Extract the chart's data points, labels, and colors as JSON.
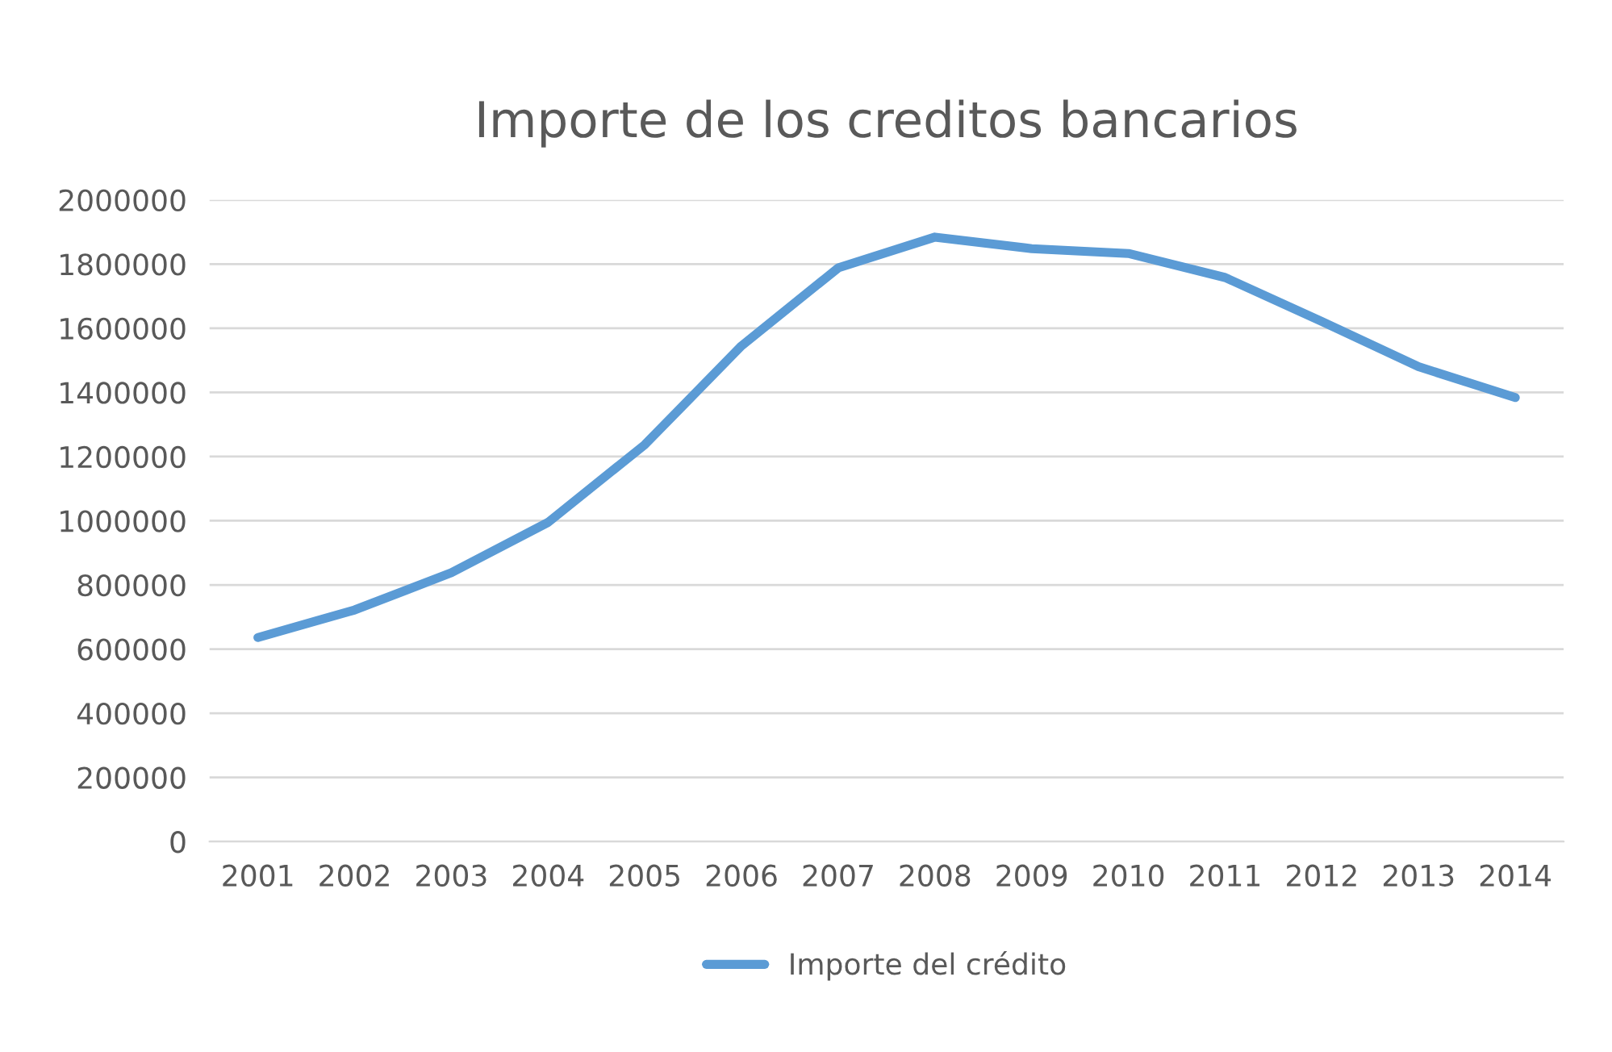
{
  "chart_data": {
    "type": "line",
    "title": "Importe de los creditos bancarios",
    "categories": [
      "2001",
      "2002",
      "2003",
      "2004",
      "2005",
      "2006",
      "2007",
      "2008",
      "2009",
      "2010",
      "2011",
      "2012",
      "2013",
      "2014"
    ],
    "series": [
      {
        "name": "Importe del crédito",
        "color": "#5b9bd5",
        "values": [
          636000,
          722000,
          838000,
          995000,
          1237000,
          1545000,
          1788000,
          1884000,
          1848000,
          1833000,
          1758000,
          1621000,
          1480000,
          1384000
        ]
      }
    ],
    "ylim": [
      0,
      2000000
    ],
    "yticks": [
      0,
      200000,
      400000,
      600000,
      800000,
      1000000,
      1200000,
      1400000,
      1600000,
      1800000,
      2000000
    ],
    "grid": "y",
    "legend": "bottom",
    "marker": "none",
    "line_style": "solid"
  }
}
